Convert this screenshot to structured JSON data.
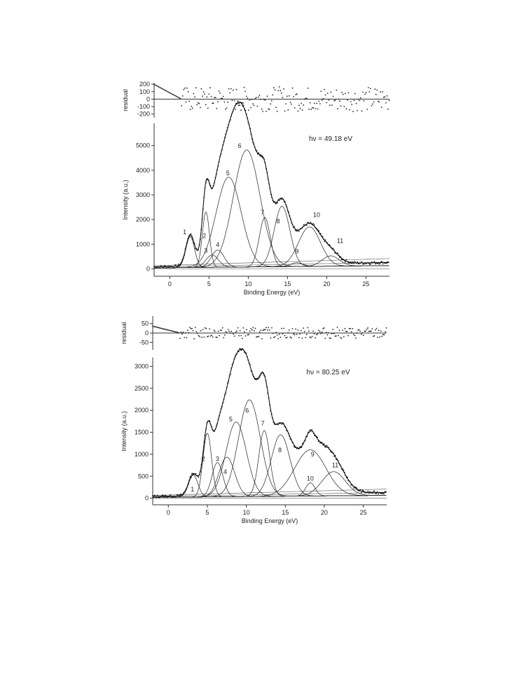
{
  "chart_data": [
    {
      "type": "line",
      "annotation": "hν = 49.18 eV",
      "xlabel": "Binding Energy (eV)",
      "ylabel": "Intensity (a.u.)",
      "residual_label": "residual",
      "xlim": [
        -2,
        28
      ],
      "ylim": [
        -300,
        5900
      ],
      "residual_ylim": [
        -250,
        220
      ],
      "xticks": [
        0,
        5,
        10,
        15,
        20,
        25
      ],
      "yticks": [
        0,
        1000,
        2000,
        3000,
        4000,
        5000
      ],
      "residual_ticks": [
        200,
        100,
        0,
        -100,
        -200
      ],
      "background": {
        "slope": 6,
        "offset": 80
      },
      "peaks": [
        {
          "label": "1",
          "center": 2.6,
          "height": 1250,
          "width": 0.55,
          "label_x": 1.9,
          "label_y": 1400
        },
        {
          "label": "2",
          "center": 4.6,
          "height": 2250,
          "width": 0.45,
          "label_x": 4.4,
          "label_y": 1250
        },
        {
          "label": "3",
          "center": 5.4,
          "height": 500,
          "width": 0.8,
          "label_x": 4.6,
          "label_y": 650
        },
        {
          "label": "4",
          "center": 6.1,
          "height": 700,
          "width": 0.8,
          "label_x": 6.1,
          "label_y": 900
        },
        {
          "label": "5",
          "center": 7.5,
          "height": 3650,
          "width": 1.6,
          "label_x": 7.4,
          "label_y": 3800
        },
        {
          "label": "6",
          "center": 9.8,
          "height": 4750,
          "width": 1.7,
          "label_x": 8.9,
          "label_y": 4900
        },
        {
          "label": "7",
          "center": 12.1,
          "height": 2000,
          "width": 0.7,
          "label_x": 11.8,
          "label_y": 2200
        },
        {
          "label": "8",
          "center": 14.3,
          "height": 2450,
          "width": 1.0,
          "label_x": 13.8,
          "label_y": 1850
        },
        {
          "label": "9",
          "center": 16.2,
          "height": 150,
          "width": 0.8,
          "label_x": 16.2,
          "label_y": 620
        },
        {
          "label": "10",
          "center": 17.8,
          "height": 1600,
          "width": 1.4,
          "label_x": 18.7,
          "label_y": 2100
        },
        {
          "label": "11",
          "center": 20.5,
          "height": 420,
          "width": 1.1,
          "label_x": 21.7,
          "label_y": 1050
        }
      ]
    },
    {
      "type": "line",
      "annotation": "hν = 80.25 eV",
      "xlabel": "Binding Energy (eV)",
      "ylabel": "Intensity (a.u.)",
      "residual_label": "residual",
      "xlim": [
        -2,
        28
      ],
      "ylim": [
        -150,
        3200
      ],
      "residual_ylim": [
        -90,
        90
      ],
      "xticks": [
        0,
        5,
        10,
        15,
        20,
        25
      ],
      "yticks": [
        0,
        500,
        1000,
        1500,
        2000,
        2500,
        3000
      ],
      "residual_ticks": [
        50,
        0,
        -50
      ],
      "background": {
        "slope": 3,
        "offset": 40
      },
      "peaks": [
        {
          "label": "1",
          "center": 3.2,
          "height": 500,
          "width": 0.6,
          "label_x": 3.1,
          "label_y": 150
        },
        {
          "label": "2",
          "center": 5.0,
          "height": 1450,
          "width": 0.55,
          "label_x": 4.5,
          "label_y": 850
        },
        {
          "label": "3",
          "center": 6.3,
          "height": 780,
          "width": 0.7,
          "label_x": 6.3,
          "label_y": 850
        },
        {
          "label": "4",
          "center": 7.5,
          "height": 900,
          "width": 1.0,
          "label_x": 7.3,
          "label_y": 550
        },
        {
          "label": "5",
          "center": 8.7,
          "height": 1700,
          "width": 1.3,
          "label_x": 8.0,
          "label_y": 1750
        },
        {
          "label": "6",
          "center": 10.4,
          "height": 2200,
          "width": 1.4,
          "label_x": 10.1,
          "label_y": 1950
        },
        {
          "label": "7",
          "center": 12.3,
          "height": 1500,
          "width": 0.7,
          "label_x": 12.1,
          "label_y": 1650
        },
        {
          "label": "8",
          "center": 14.4,
          "height": 1400,
          "width": 1.2,
          "label_x": 14.3,
          "label_y": 1050
        },
        {
          "label": "9",
          "center": 18.2,
          "height": 1050,
          "width": 2.0,
          "label_x": 18.5,
          "label_y": 950
        },
        {
          "label": "10",
          "center": 18.2,
          "height": 300,
          "width": 0.6,
          "label_x": 18.2,
          "label_y": 400
        },
        {
          "label": "11",
          "center": 21.2,
          "height": 550,
          "width": 1.5,
          "label_x": 21.4,
          "label_y": 700
        }
      ]
    }
  ]
}
